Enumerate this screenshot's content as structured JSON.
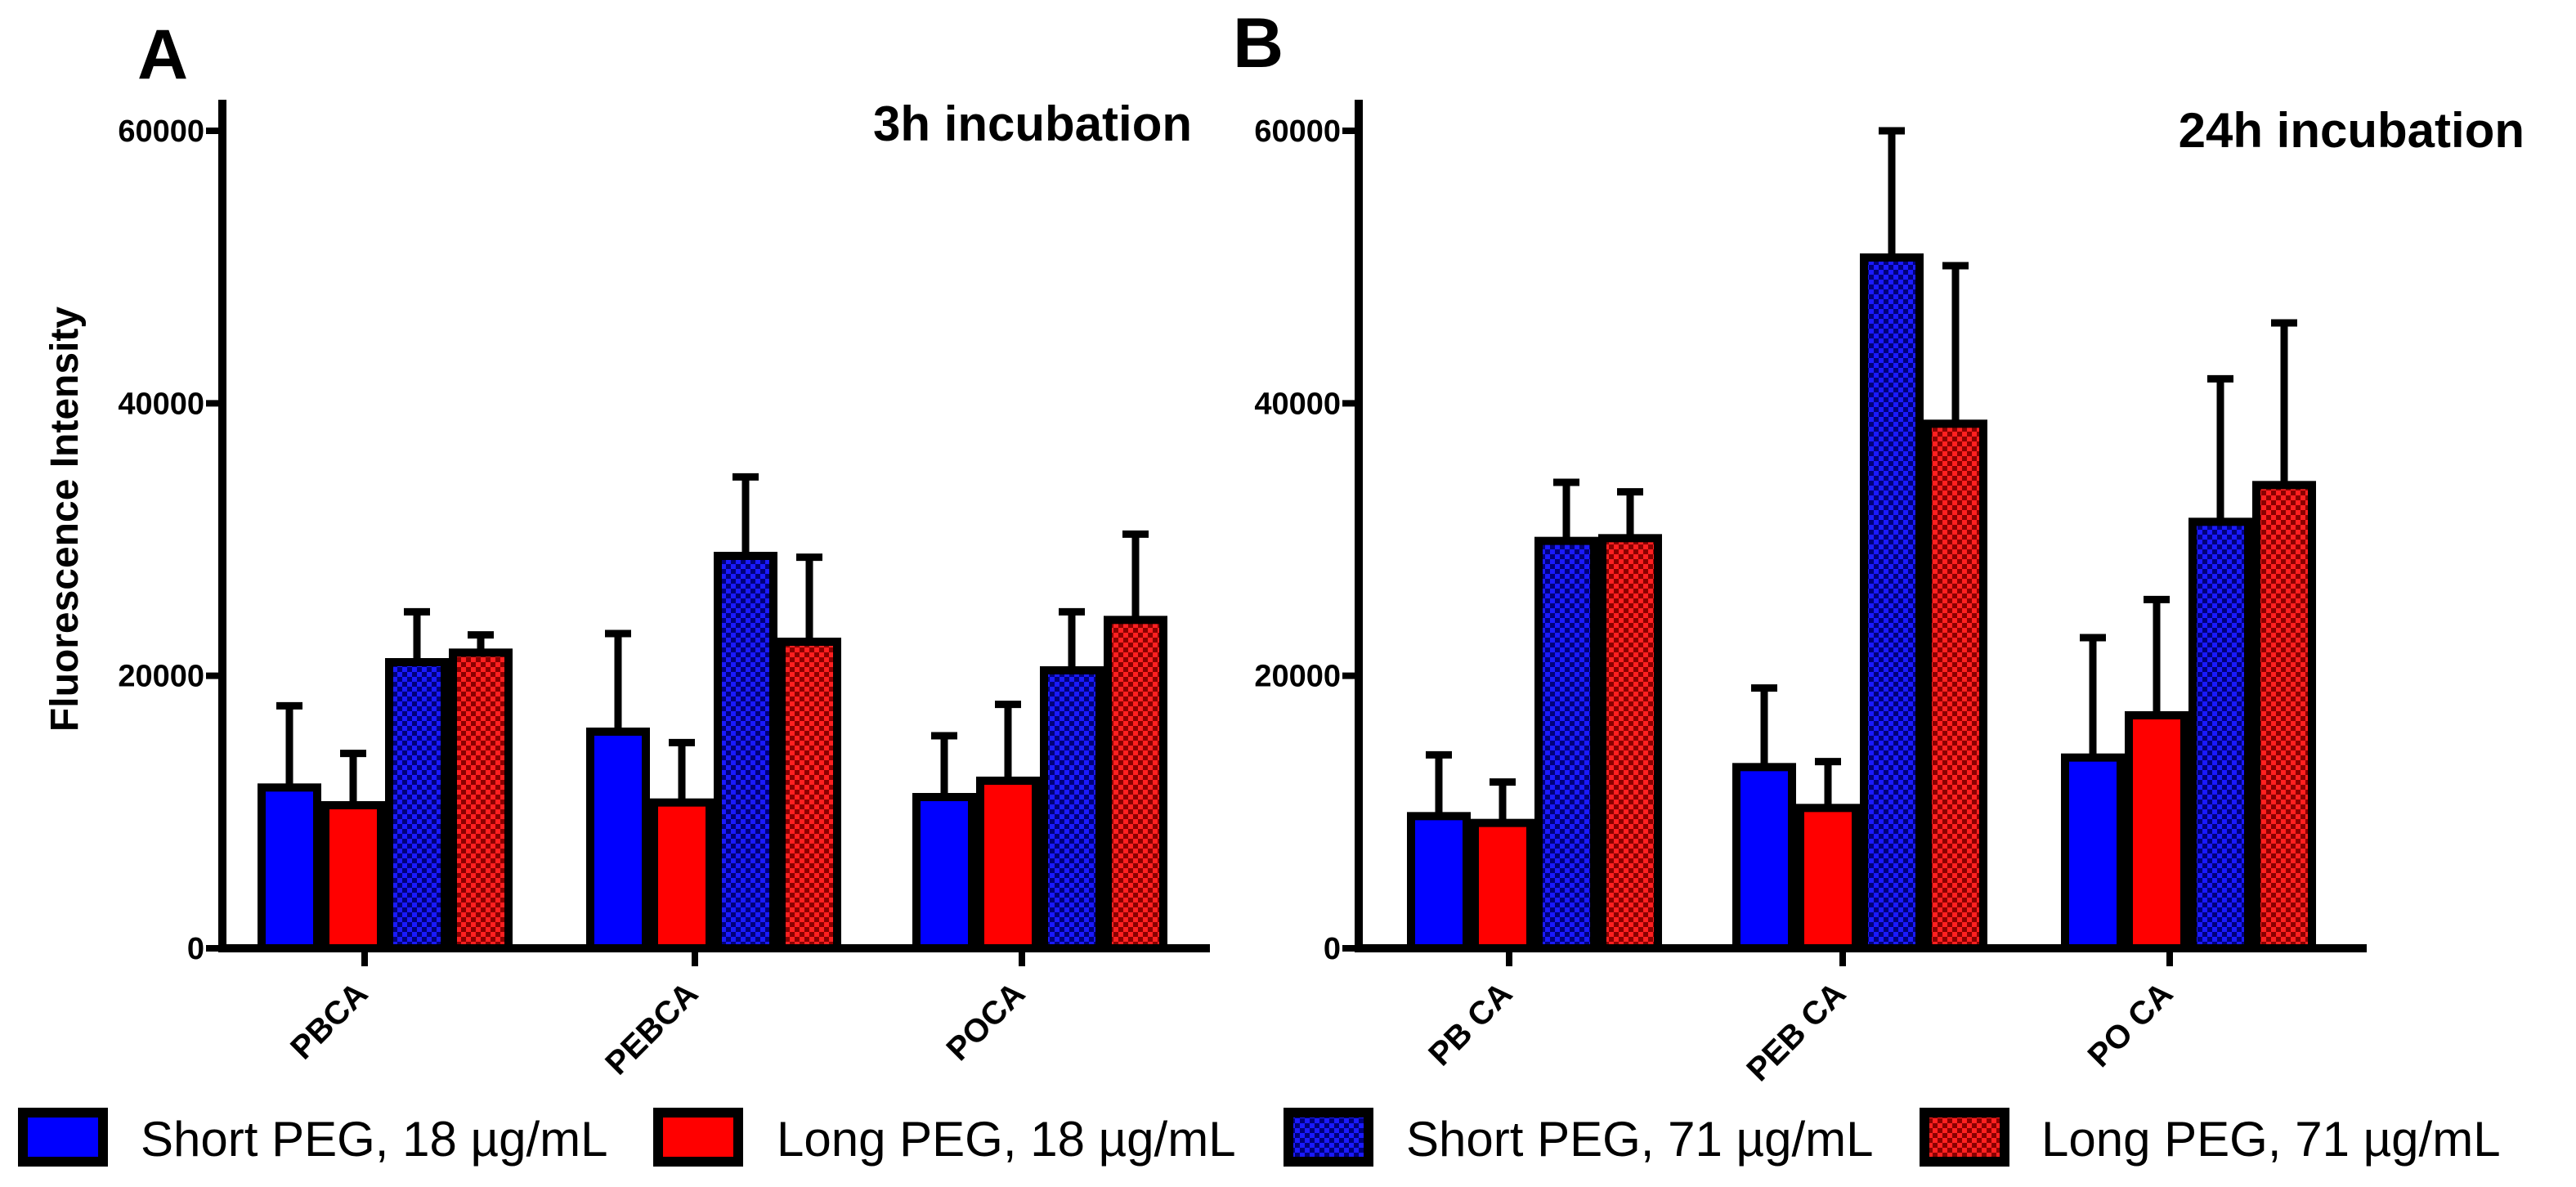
{
  "chart_data": [
    {
      "type": "bar",
      "panel_label": "A",
      "title": "3h incubation",
      "ylabel": "Fluorescence Intensity",
      "xlabel": "",
      "ylim": [
        0,
        60000
      ],
      "yticks": [
        0,
        20000,
        40000,
        60000
      ],
      "ytick_labels": [
        "0",
        "20000",
        "40000",
        "60000"
      ],
      "categories": [
        "PBCA",
        "PEBCA",
        "POCA"
      ],
      "series": [
        {
          "name": "Short PEG, 18 µg/mL",
          "values": [
            11800,
            15900,
            11100
          ],
          "errors": [
            6000,
            7200,
            4500
          ]
        },
        {
          "name": "Long PEG, 18 µg/mL",
          "values": [
            10500,
            10700,
            12300
          ],
          "errors": [
            3800,
            4400,
            5600
          ]
        },
        {
          "name": "Short PEG, 71 µg/mL",
          "values": [
            21000,
            28800,
            20400
          ],
          "errors": [
            3700,
            5800,
            4300
          ]
        },
        {
          "name": "Long PEG, 71 µg/mL",
          "values": [
            21700,
            22500,
            24100
          ],
          "errors": [
            1300,
            6200,
            6300
          ]
        }
      ]
    },
    {
      "type": "bar",
      "panel_label": "B",
      "title": "24h incubation",
      "ylabel": "",
      "xlabel": "",
      "ylim": [
        0,
        60000
      ],
      "yticks": [
        0,
        20000,
        40000,
        60000
      ],
      "ytick_labels": [
        "0",
        "20000",
        "40000",
        "60000"
      ],
      "categories": [
        "PB CA",
        "PEB CA",
        "PO CA"
      ],
      "series": [
        {
          "name": "Short PEG, 18 µg/mL",
          "values": [
            9700,
            13300,
            14000
          ],
          "errors": [
            4500,
            5800,
            8800
          ]
        },
        {
          "name": "Long PEG, 18 µg/mL",
          "values": [
            9200,
            10300,
            17100
          ],
          "errors": [
            3000,
            3400,
            8500
          ]
        },
        {
          "name": "Short PEG, 71 µg/mL",
          "values": [
            29900,
            50700,
            31300
          ],
          "errors": [
            4300,
            9300,
            10500
          ]
        },
        {
          "name": "Long PEG, 71 µg/mL",
          "values": [
            30100,
            38500,
            34000
          ],
          "errors": [
            3400,
            11600,
            11900
          ]
        }
      ]
    }
  ],
  "legend": [
    {
      "label": "Short PEG, 18 µg/mL",
      "style": "solid-blue"
    },
    {
      "label": "Long PEG, 18 µg/mL",
      "style": "solid-red"
    },
    {
      "label": "Short PEG, 71 µg/mL",
      "style": "checker-blue"
    },
    {
      "label": "Long PEG, 71 µg/mL",
      "style": "checker-red"
    }
  ],
  "colors": {
    "blue": "#0000ff",
    "red": "#ff0000",
    "dark_blue": "#00007a",
    "dark_red": "#8a0000",
    "outline": "#000000"
  }
}
